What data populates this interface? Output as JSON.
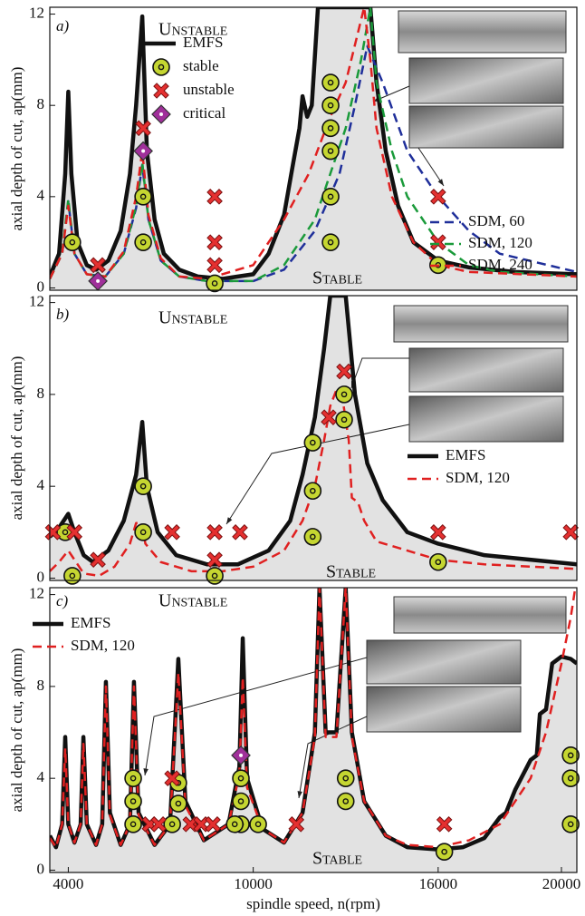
{
  "chart_data": [
    {
      "type": "line",
      "panel_label": "a)",
      "unstable_label": "Unstable",
      "stable_label": "Stable",
      "ylabel": "axial depth of cut, ap(mm)",
      "xlim": [
        3400,
        20500
      ],
      "ylim": [
        -0.1,
        12.3
      ],
      "yticks": [
        0,
        4,
        8,
        12
      ],
      "series": [
        {
          "name": "EMFS",
          "kind": "line",
          "color": "#111111",
          "fill": "#e2e2e2",
          "width": 4.5,
          "dash": "none",
          "x": [
            3400,
            3700,
            3900,
            4000,
            4100,
            4300,
            4600,
            4900,
            5300,
            5700,
            6000,
            6200,
            6400,
            6550,
            6800,
            7100,
            7600,
            8200,
            9000,
            10000,
            10500,
            11000,
            11300,
            11500,
            11600,
            11750,
            11900,
            12100,
            13800,
            14000,
            14300,
            14700,
            15200,
            16000,
            17000,
            18500,
            20500
          ],
          "values": [
            0.5,
            1.5,
            5,
            8.6,
            5,
            2,
            1,
            0.8,
            1.2,
            2.5,
            5,
            8,
            11.9,
            6,
            3,
            1.5,
            0.8,
            0.5,
            0.4,
            0.6,
            1.5,
            3.2,
            5.5,
            7,
            8.4,
            7.5,
            8,
            12.3,
            12.3,
            9,
            6,
            3.6,
            2,
            1.2,
            0.9,
            0.7,
            0.6
          ]
        },
        {
          "name": "SDM, 60",
          "kind": "line",
          "color": "#1f2f9a",
          "width": 2.5,
          "dash": "10 6",
          "x": [
            3400,
            3800,
            4000,
            4200,
            4600,
            5200,
            5800,
            6200,
            6400,
            6600,
            7000,
            7600,
            8500,
            10000,
            11000,
            12000,
            12800,
            13300,
            13700,
            14200,
            15000,
            16000,
            17000,
            18000,
            20500
          ],
          "values": [
            0.4,
            1.5,
            3.8,
            1.5,
            0.6,
            0.5,
            1.5,
            3.5,
            5.4,
            3,
            1.2,
            0.5,
            0.3,
            0.3,
            0.8,
            2.5,
            5,
            8,
            10.6,
            9,
            6,
            4,
            2.5,
            1.5,
            0.7
          ]
        },
        {
          "name": "SDM, 120",
          "kind": "line",
          "color": "#1a9a3a",
          "width": 2.5,
          "dash": "10 6",
          "x": [
            3400,
            3800,
            4000,
            4200,
            4600,
            5200,
            5800,
            6200,
            6400,
            6600,
            7000,
            7600,
            8500,
            10000,
            11000,
            12000,
            13000,
            13500,
            13800,
            14000,
            14500,
            15000,
            16000,
            17000,
            18000,
            20500
          ],
          "values": [
            0.4,
            1.5,
            3.9,
            1.5,
            0.6,
            0.5,
            1.5,
            3.6,
            5.5,
            3,
            1.2,
            0.5,
            0.3,
            0.3,
            1,
            3,
            7,
            10,
            12.3,
            9,
            6,
            4,
            2,
            1,
            0.7,
            0.5
          ]
        },
        {
          "name": "SDM, 240",
          "kind": "line",
          "color": "#e02020",
          "width": 2.5,
          "dash": "10 6",
          "x": [
            3400,
            3800,
            4000,
            4200,
            4600,
            5200,
            5800,
            6200,
            6400,
            6600,
            7000,
            7600,
            8500,
            10000,
            11000,
            11800,
            12500,
            13000,
            13600,
            13800,
            14000,
            14500,
            15200,
            16000,
            17000,
            20500
          ],
          "values": [
            0.4,
            1.5,
            3.6,
            1.5,
            0.6,
            0.5,
            1.6,
            4,
            6,
            3.2,
            1.3,
            0.5,
            0.4,
            1,
            3,
            5,
            7.5,
            9,
            12.3,
            10,
            7,
            4,
            2,
            1,
            0.7,
            0.5
          ]
        },
        {
          "name": "stable",
          "kind": "scatter",
          "marker": "circle",
          "color": "#c5d631",
          "x": [
            4130,
            6430,
            6430,
            8750,
            12510,
            12510,
            12510,
            12510,
            12510,
            12510,
            16000
          ],
          "values": [
            2,
            2,
            4,
            0.2,
            2,
            4,
            6,
            7,
            8,
            9,
            1
          ]
        },
        {
          "name": "unstable",
          "kind": "scatter",
          "marker": "x",
          "color": "#e53030",
          "x": [
            4960,
            6430,
            8750,
            8750,
            8750,
            16000,
            16000
          ],
          "values": [
            1,
            7,
            4,
            2,
            1,
            4,
            2
          ]
        },
        {
          "name": "critical",
          "kind": "scatter",
          "marker": "diamond",
          "color": "#a0309a",
          "x": [
            4960,
            6430
          ],
          "values": [
            0.3,
            6
          ]
        }
      ]
    },
    {
      "type": "line",
      "panel_label": "b)",
      "unstable_label": "Unstable",
      "stable_label": "Stable",
      "ylabel": "axial depth of cut, ap(mm)",
      "xlim": [
        3400,
        20500
      ],
      "ylim": [
        -0.1,
        12.3
      ],
      "yticks": [
        0,
        4,
        8,
        12
      ],
      "series": [
        {
          "name": "EMFS",
          "kind": "line",
          "color": "#111111",
          "fill": "#e2e2e2",
          "width": 4.5,
          "dash": "none",
          "x": [
            3400,
            3700,
            4000,
            4200,
            4500,
            4800,
            5300,
            5800,
            6200,
            6400,
            6550,
            6900,
            7500,
            8500,
            9500,
            10500,
            11200,
            11600,
            12000,
            12300,
            12500,
            13000,
            13300,
            13700,
            14200,
            15000,
            16000,
            17500,
            20500
          ],
          "values": [
            1.8,
            2.2,
            2.8,
            2,
            1,
            0.7,
            1.2,
            2.5,
            4.5,
            6.8,
            4,
            2,
            1,
            0.6,
            0.6,
            1.2,
            2.5,
            4.5,
            7,
            10,
            12.3,
            12.3,
            8,
            5,
            3.4,
            2,
            1.5,
            1,
            0.6
          ]
        },
        {
          "name": "SDM, 120",
          "kind": "line",
          "color": "#e02020",
          "width": 2.5,
          "dash": "10 6",
          "x": [
            3400,
            3700,
            4000,
            4200,
            4500,
            5000,
            5500,
            6000,
            6200,
            6400,
            6500,
            7000,
            8000,
            9000,
            10000,
            11000,
            11600,
            12000,
            12300,
            12500,
            12700,
            12900,
            13100,
            13200,
            13400,
            13600,
            14000,
            15000,
            16000,
            17500,
            20500
          ],
          "values": [
            0.3,
            0.7,
            1.2,
            0.8,
            0.2,
            0.1,
            0.5,
            1.5,
            2.4,
            2.4,
            1.5,
            0.7,
            0.3,
            0.3,
            0.5,
            1.2,
            2.5,
            4,
            6,
            7.5,
            8.2,
            7.8,
            6,
            3.5,
            3.3,
            2.5,
            1.6,
            1.2,
            0.8,
            0.6,
            0.4
          ]
        },
        {
          "kind": "scatter",
          "marker": "circle",
          "color": "#c5d631",
          "x": [
            3900,
            4130,
            6430,
            6430,
            8750,
            11930,
            11930,
            11930,
            12950,
            12950,
            16000
          ],
          "values": [
            2,
            0.1,
            2,
            4,
            0.1,
            1.8,
            3.8,
            5.9,
            6.9,
            8,
            0.7
          ]
        },
        {
          "kind": "scatter",
          "marker": "x",
          "color": "#e53030",
          "x": [
            3500,
            4200,
            4960,
            7370,
            8750,
            8750,
            9570,
            12450,
            12950,
            16000,
            20300
          ],
          "values": [
            2,
            2,
            0.8,
            2,
            2,
            0.8,
            2,
            7,
            9,
            2,
            2
          ]
        }
      ]
    },
    {
      "type": "line",
      "panel_label": "c)",
      "unstable_label": "Unstable",
      "stable_label": "Stable",
      "ylabel": "axial depth of cut, ap(mm)",
      "xlabel": "spindle speed, n(rpm)",
      "xlim": [
        3400,
        20500
      ],
      "ylim": [
        -0.1,
        12.3
      ],
      "yticks": [
        0,
        4,
        8,
        12
      ],
      "xticks": [
        4000,
        10000,
        16000,
        20000
      ],
      "series": [
        {
          "name": "EMFS",
          "kind": "line",
          "color": "#111111",
          "fill": "#e2e2e2",
          "width": 4.5,
          "dash": "none",
          "x": [
            3400,
            3600,
            3800,
            3900,
            4000,
            4200,
            4400,
            4490,
            4600,
            4900,
            5100,
            5220,
            5350,
            5700,
            6000,
            6130,
            6280,
            6800,
            7300,
            7570,
            7800,
            8400,
            9200,
            9550,
            9660,
            9800,
            10300,
            11000,
            11600,
            12000,
            12150,
            12350,
            12700,
            13000,
            13200,
            13600,
            14300,
            15000,
            16000,
            16800,
            17500,
            18000,
            18200,
            18500,
            19000,
            19200,
            19300,
            19500,
            19700,
            20000,
            20300,
            20500
          ],
          "values": [
            1.5,
            1,
            2,
            5.8,
            2,
            1.2,
            2,
            5.8,
            2,
            1.1,
            2,
            8.2,
            2.5,
            1.1,
            2,
            8.2,
            2.5,
            1.1,
            2,
            9.2,
            3,
            1.3,
            2,
            4.5,
            10.1,
            4,
            1.8,
            1.2,
            2.5,
            6,
            12.3,
            6,
            6,
            12.3,
            6,
            3,
            1.5,
            1,
            0.9,
            1,
            1.4,
            2.3,
            2.5,
            3.5,
            4.8,
            5,
            6.8,
            7,
            9,
            9.3,
            9.2,
            9
          ]
        },
        {
          "name": "SDM, 120",
          "kind": "line",
          "color": "#e02020",
          "width": 2.5,
          "dash": "10 6",
          "x": [
            3400,
            3600,
            3800,
            3900,
            4000,
            4200,
            4400,
            4490,
            4600,
            4900,
            5100,
            5220,
            5350,
            5700,
            6000,
            6130,
            6280,
            6800,
            7300,
            7570,
            7800,
            8400,
            9200,
            9550,
            9660,
            9800,
            10300,
            11000,
            11600,
            12000,
            12150,
            12350,
            12700,
            13000,
            13200,
            13600,
            14300,
            15000,
            16000,
            17000,
            18000,
            19000,
            19500,
            20000,
            20300,
            20450
          ],
          "values": [
            1.4,
            1,
            2,
            5.3,
            2,
            1.2,
            2,
            5.5,
            2,
            1.1,
            2,
            8,
            2.4,
            1.1,
            2,
            8,
            2.4,
            1.1,
            2,
            8.6,
            2.8,
            1.3,
            2,
            4.2,
            8.4,
            3.6,
            1.8,
            1.2,
            2.5,
            5.8,
            12.3,
            5.8,
            5.8,
            12.3,
            5.8,
            3,
            1.5,
            1.1,
            1,
            1.3,
            2,
            4,
            6,
            9,
            11,
            12.3
          ]
        },
        {
          "kind": "scatter",
          "marker": "circle",
          "color": "#c5d631",
          "x": [
            6105,
            6105,
            6105,
            7370,
            7570,
            7570,
            9600,
            9600,
            9600,
            9400,
            10160,
            13000,
            13000,
            16200,
            20300,
            20300,
            20300
          ],
          "values": [
            4,
            3,
            2,
            2,
            3.8,
            2.9,
            4,
            3,
            2,
            2,
            2,
            4,
            3,
            0.8,
            5,
            4,
            2
          ]
        },
        {
          "kind": "scatter",
          "marker": "x",
          "color": "#e53030",
          "x": [
            6640,
            6930,
            7370,
            7960,
            8310,
            8690,
            11400,
            16200
          ],
          "values": [
            2,
            2,
            4,
            2,
            2,
            2,
            2,
            2
          ]
        },
        {
          "kind": "scatter",
          "marker": "diamond",
          "color": "#a0309a",
          "x": [
            9600
          ],
          "values": [
            5
          ]
        }
      ]
    }
  ]
}
